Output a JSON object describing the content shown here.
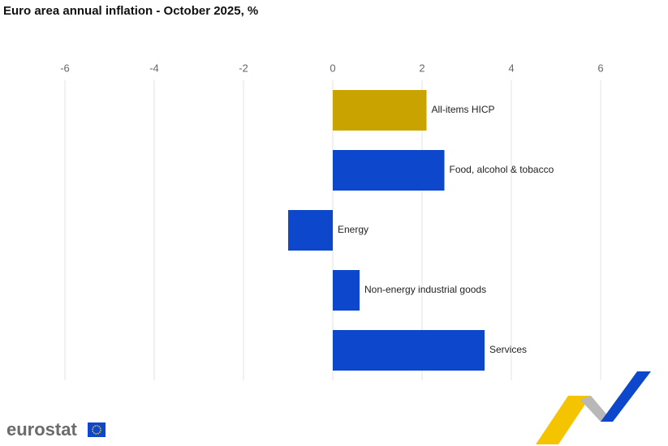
{
  "chart_data": {
    "type": "hbar",
    "title": "Euro area annual inflation - October 2025, %",
    "categories": [
      "All-items HICP",
      "Food, alcohol & tobacco",
      "Energy",
      "Non-energy industrial goods",
      "Services"
    ],
    "values": [
      2.1,
      2.5,
      -1.0,
      0.6,
      3.4
    ],
    "colors": [
      "#c9a400",
      "#0c47cc",
      "#0c47cc",
      "#0c47cc",
      "#0c47cc"
    ],
    "xlim": [
      -6,
      6
    ],
    "xticks": [
      -6,
      -4,
      -2,
      0,
      2,
      4,
      6
    ],
    "grid": true
  },
  "logo_text": "eurostat"
}
